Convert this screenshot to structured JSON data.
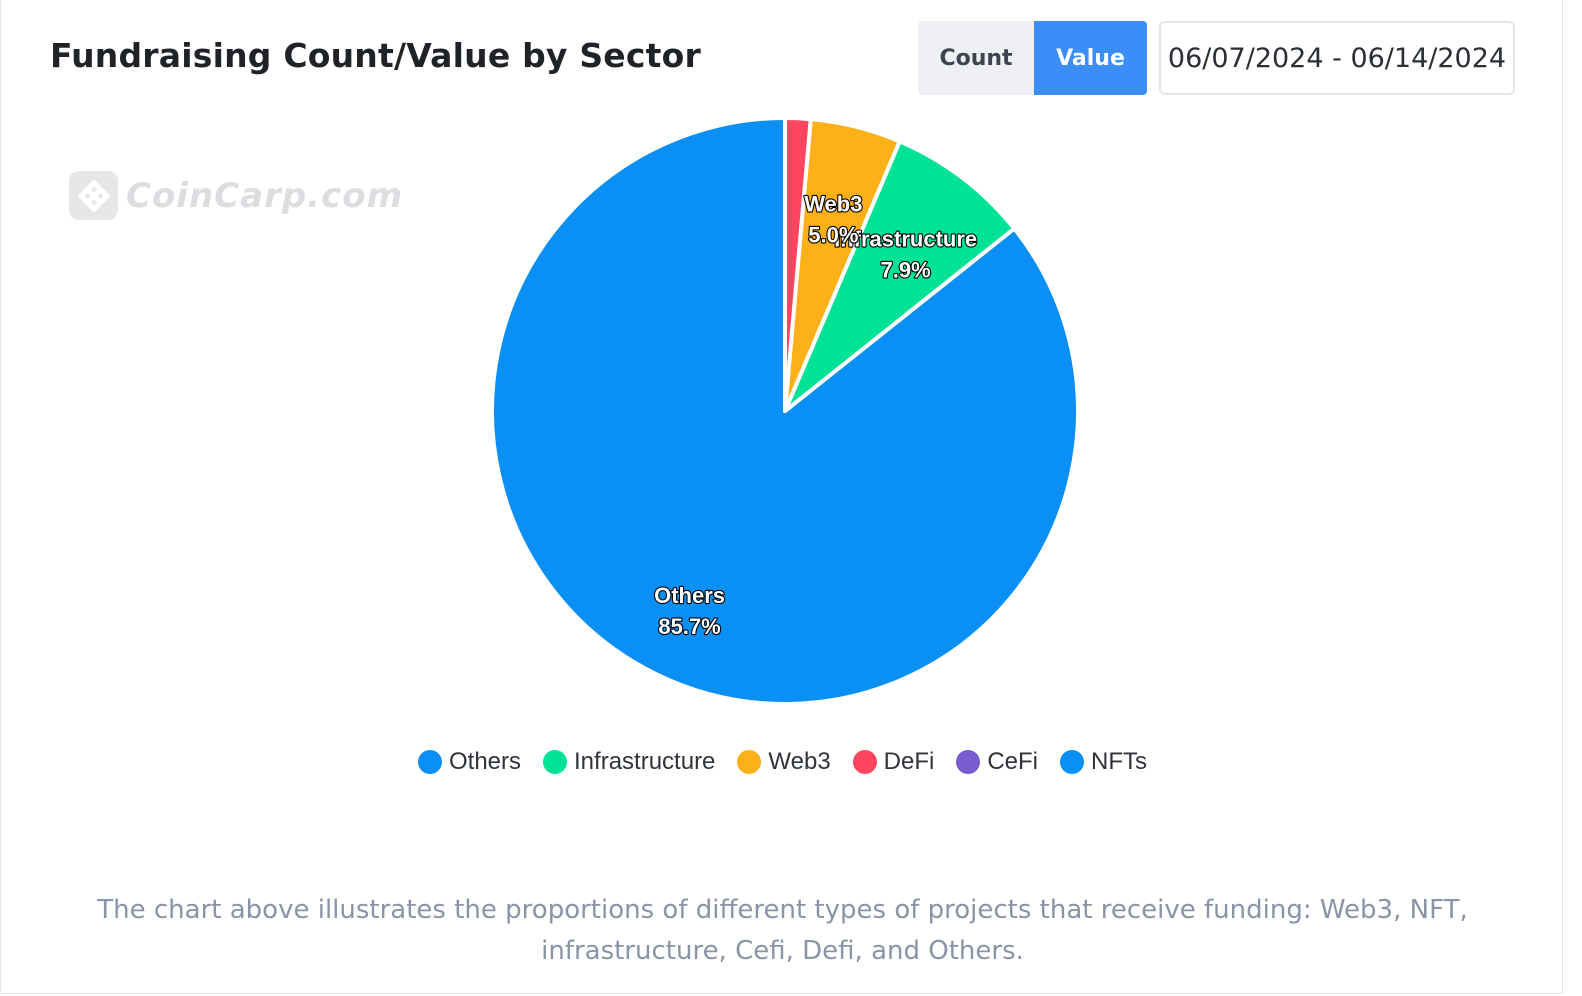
{
  "header": {
    "title": "Fundraising Count/Value by Sector",
    "toggle": {
      "count_label": "Count",
      "value_label": "Value",
      "active": "Value"
    },
    "date_range": "06/07/2024 - 06/14/2024"
  },
  "watermark": {
    "text": "CoinCarp.com"
  },
  "colors": {
    "accent": "#3b8ef7",
    "Others": "#0a8ff5",
    "Infrastructure": "#00e396",
    "Web3": "#feb019",
    "DeFi": "#ff4560",
    "CeFi": "#775dd0",
    "NFTs": "#0a8ff5"
  },
  "chart_data": {
    "type": "pie",
    "title": "",
    "slices": [
      {
        "name": "Others",
        "percent": 85.7,
        "label": "85.7%"
      },
      {
        "name": "Infrastructure",
        "percent": 7.9,
        "label": "7.9%"
      },
      {
        "name": "Web3",
        "percent": 5.0,
        "label": "5.0%"
      },
      {
        "name": "DeFi",
        "percent": 1.4,
        "label": ""
      },
      {
        "name": "CeFi",
        "percent": 0,
        "label": ""
      },
      {
        "name": "NFTs",
        "percent": 0,
        "label": ""
      }
    ],
    "legend": [
      "Others",
      "Infrastructure",
      "Web3",
      "DeFi",
      "CeFi",
      "NFTs"
    ],
    "legend_position": "bottom"
  },
  "caption": "The chart above illustrates the proportions of different types of projects that receive funding: Web3, NFT, infrastructure, Cefi, Defi, and Others."
}
